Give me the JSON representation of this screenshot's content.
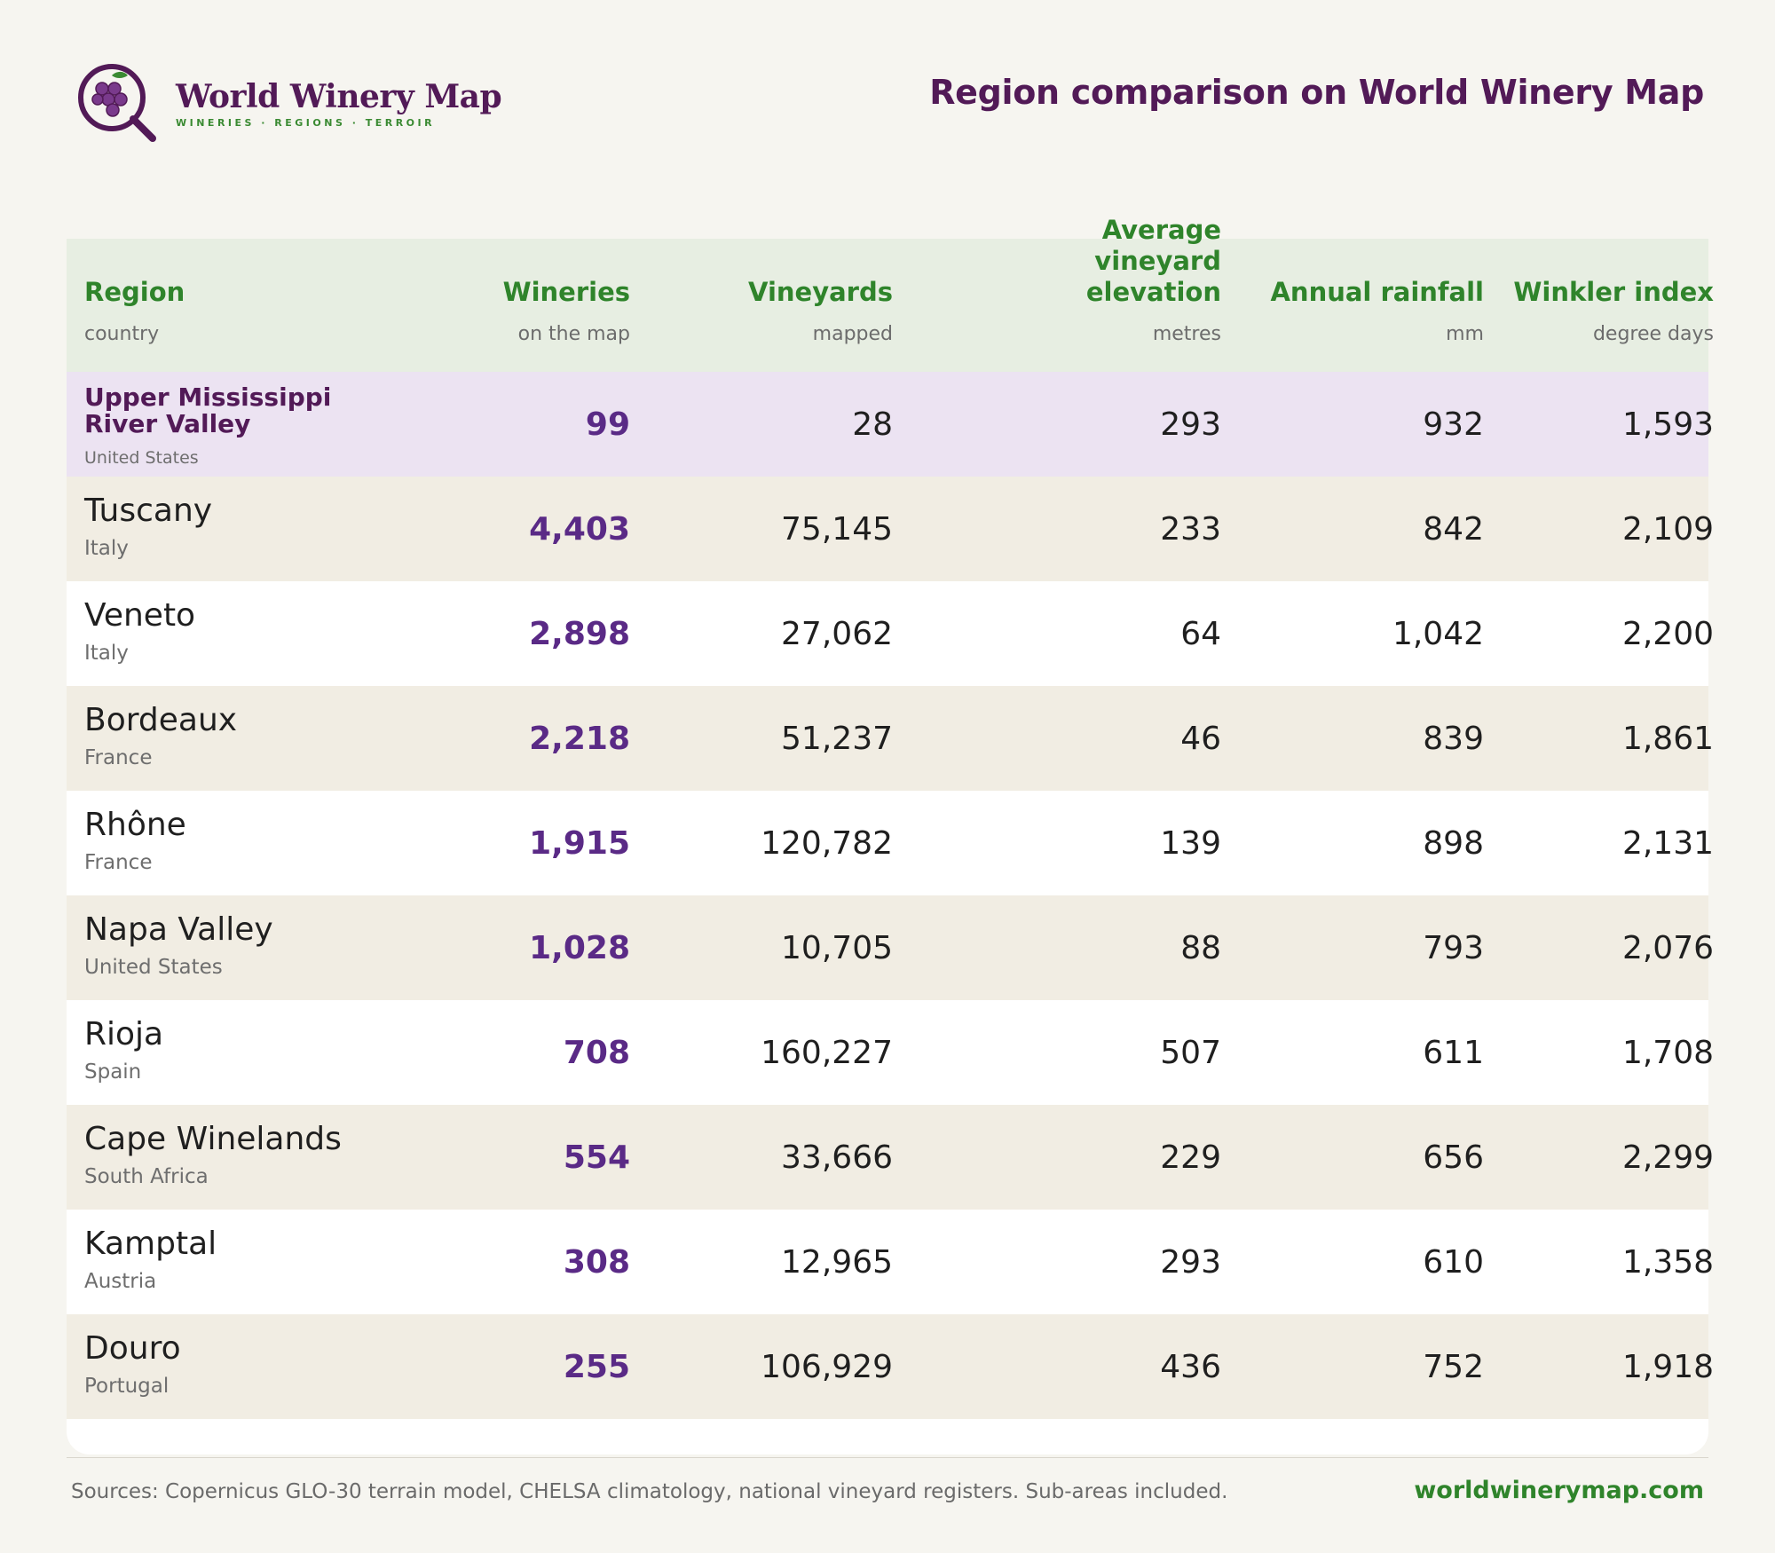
{
  "brand": {
    "name": "World Winery Map",
    "tagline": "WINERIES · REGIONS · TERROIR",
    "colors": {
      "primary": "#521a57",
      "accent": "#2f842b",
      "number": "#5a2a86"
    }
  },
  "page_title": "Region comparison on World Winery Map",
  "table": {
    "columns": [
      {
        "label": "Region",
        "sub": "country"
      },
      {
        "label": "Wineries",
        "sub": "on the map"
      },
      {
        "label": "Vineyards",
        "sub": "mapped"
      },
      {
        "label": "Average vineyard elevation",
        "sub": "metres"
      },
      {
        "label": "Annual rainfall",
        "sub": "mm"
      },
      {
        "label": "Winkler index",
        "sub": "degree days"
      }
    ],
    "rows": [
      {
        "region": "Upper Mississippi River Valley",
        "country": "United States",
        "wineries": "99",
        "vineyards": "28",
        "elevation": "293",
        "rainfall": "932",
        "winkler": "1,593"
      },
      {
        "region": "Tuscany",
        "country": "Italy",
        "wineries": "4,403",
        "vineyards": "75,145",
        "elevation": "233",
        "rainfall": "842",
        "winkler": "2,109"
      },
      {
        "region": "Veneto",
        "country": "Italy",
        "wineries": "2,898",
        "vineyards": "27,062",
        "elevation": "64",
        "rainfall": "1,042",
        "winkler": "2,200"
      },
      {
        "region": "Bordeaux",
        "country": "France",
        "wineries": "2,218",
        "vineyards": "51,237",
        "elevation": "46",
        "rainfall": "839",
        "winkler": "1,861"
      },
      {
        "region": "Rhône",
        "country": "France",
        "wineries": "1,915",
        "vineyards": "120,782",
        "elevation": "139",
        "rainfall": "898",
        "winkler": "2,131"
      },
      {
        "region": "Napa Valley",
        "country": "United States",
        "wineries": "1,028",
        "vineyards": "10,705",
        "elevation": "88",
        "rainfall": "793",
        "winkler": "2,076"
      },
      {
        "region": "Rioja",
        "country": "Spain",
        "wineries": "708",
        "vineyards": "160,227",
        "elevation": "507",
        "rainfall": "611",
        "winkler": "1,708"
      },
      {
        "region": "Cape Winelands",
        "country": "South Africa",
        "wineries": "554",
        "vineyards": "33,666",
        "elevation": "229",
        "rainfall": "656",
        "winkler": "2,299"
      },
      {
        "region": "Kamptal",
        "country": "Austria",
        "wineries": "308",
        "vineyards": "12,965",
        "elevation": "293",
        "rainfall": "610",
        "winkler": "1,358"
      },
      {
        "region": "Douro",
        "country": "Portugal",
        "wineries": "255",
        "vineyards": "106,929",
        "elevation": "436",
        "rainfall": "752",
        "winkler": "1,918"
      }
    ]
  },
  "footer": {
    "sources": "Sources: Copernicus GLO-30 terrain model, CHELSA climatology, national vineyard registers. Sub-areas included.",
    "site": "worldwinerymap.com"
  }
}
